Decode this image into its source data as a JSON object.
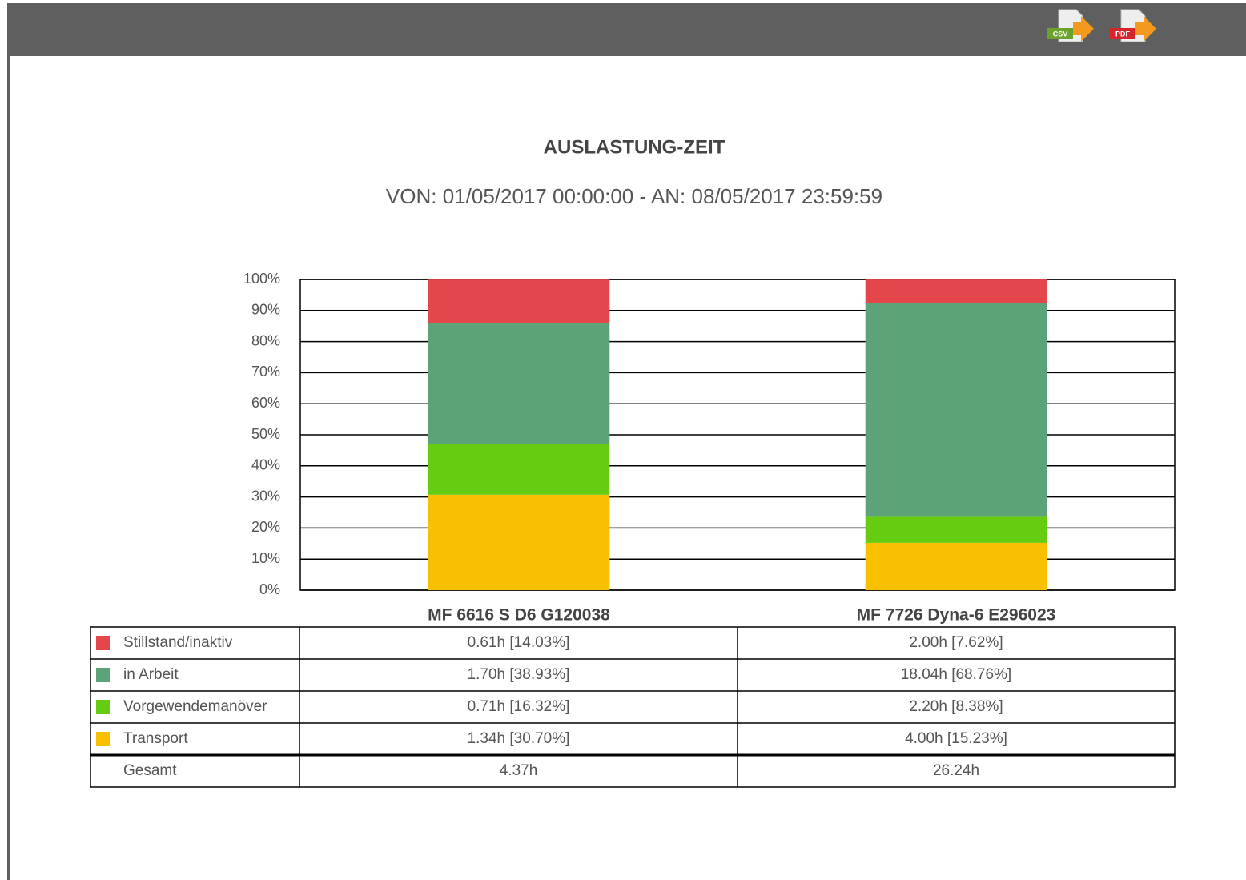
{
  "toolbar": {
    "buttons": [
      "CSV",
      "PDF"
    ]
  },
  "chart_data": {
    "type": "stacked_bar",
    "title": "AUSLASTUNG-ZEIT",
    "subtitle": "VON: 01/05/2017 00:00:00 - AN: 08/05/2017 23:59:59",
    "categories": [
      "MF 6616 S D6 G120038",
      "MF 7726 Dyna-6 E296023"
    ],
    "series": [
      {
        "name": "Stillstand/inaktiv",
        "color": "#e3464b",
        "values": [
          14.03,
          7.62
        ],
        "value_labels": [
          "0.61h [14.03%]",
          "2.00h [7.62%]"
        ]
      },
      {
        "name": "in Arbeit",
        "color": "#5ca379",
        "values": [
          38.93,
          68.76
        ],
        "value_labels": [
          "1.70h [38.93%]",
          "18.04h [68.76%]"
        ]
      },
      {
        "name": "Vorgewendemanöver",
        "color": "#66cc12",
        "values": [
          16.32,
          8.38
        ],
        "value_labels": [
          "0.71h [16.32%]",
          "2.20h [8.38%]"
        ]
      },
      {
        "name": "Transport",
        "color": "#f8c000",
        "values": [
          30.7,
          15.23
        ],
        "value_labels": [
          "1.34h [30.70%]",
          "4.00h [15.23%]"
        ]
      }
    ],
    "total_label": "Gesamt",
    "total_labels": [
      "4.37h",
      "26.24h"
    ],
    "ylim": [
      0,
      100
    ],
    "yticks": [
      {
        "value": 0,
        "label": "0%"
      },
      {
        "value": 10,
        "label": "10%"
      },
      {
        "value": 20,
        "label": "20%"
      },
      {
        "value": 30,
        "label": "30%"
      },
      {
        "value": 40,
        "label": "40%"
      },
      {
        "value": 50,
        "label": "50%"
      },
      {
        "value": 60,
        "label": "60%"
      },
      {
        "value": 70,
        "label": "70%"
      },
      {
        "value": 80,
        "label": "80%"
      },
      {
        "value": 90,
        "label": "90%"
      },
      {
        "value": 100,
        "label": "100%"
      }
    ],
    "grid": true
  }
}
